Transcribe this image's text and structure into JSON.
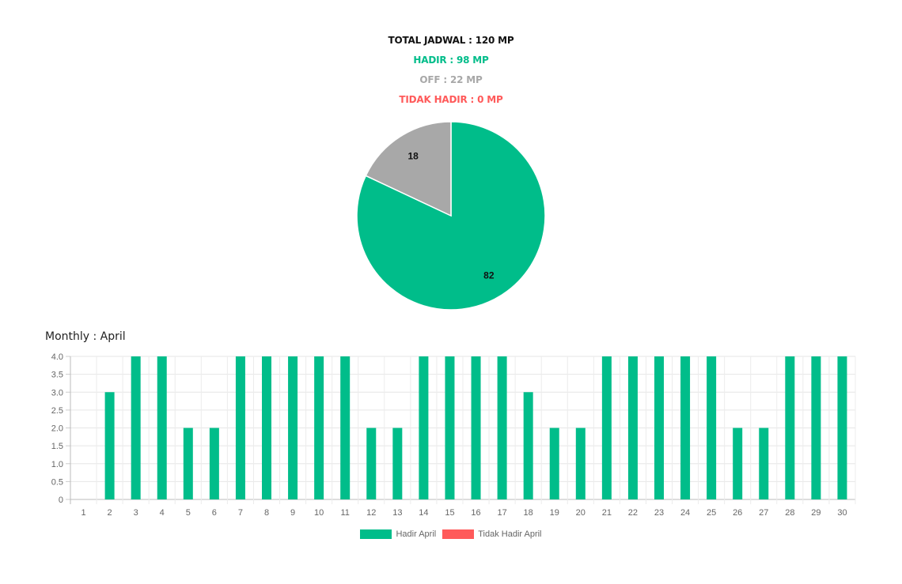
{
  "summary": {
    "total": "TOTAL JADWAL : 120 MP",
    "hadir": "HADIR : 98 MP",
    "off": "OFF : 22 MP",
    "tidak_hadir": "TIDAK HADIR : 0 MP"
  },
  "monthly_title": "Monthly : April",
  "colors": {
    "hadir": "#00bd8a",
    "off": "#a8a8a8",
    "tidak_hadir": "#ff5a5a",
    "total": "#111111"
  },
  "chart_data": [
    {
      "type": "pie",
      "values": [
        82,
        18
      ],
      "labels": [
        "82",
        "18"
      ],
      "colors": [
        "#00bd8a",
        "#a8a8a8"
      ]
    },
    {
      "type": "bar",
      "categories": [
        "1",
        "2",
        "3",
        "4",
        "5",
        "6",
        "7",
        "8",
        "9",
        "10",
        "11",
        "12",
        "13",
        "14",
        "15",
        "16",
        "17",
        "18",
        "19",
        "20",
        "21",
        "22",
        "23",
        "24",
        "25",
        "26",
        "27",
        "28",
        "29",
        "30"
      ],
      "series": [
        {
          "name": "Hadir April",
          "color": "#00bd8a",
          "values": [
            0,
            3,
            4,
            4,
            2,
            2,
            4,
            4,
            4,
            4,
            4,
            2,
            2,
            4,
            4,
            4,
            4,
            3,
            2,
            2,
            4,
            4,
            4,
            4,
            4,
            2,
            2,
            4,
            4,
            4
          ]
        },
        {
          "name": "Tidak Hadir April",
          "color": "#ff5a5a",
          "values": [
            0,
            0,
            0,
            0,
            0,
            0,
            0,
            0,
            0,
            0,
            0,
            0,
            0,
            0,
            0,
            0,
            0,
            0,
            0,
            0,
            0,
            0,
            0,
            0,
            0,
            0,
            0,
            0,
            0,
            0
          ]
        }
      ],
      "yticks": [
        "0",
        "0.5",
        "1.0",
        "1.5",
        "2.0",
        "2.5",
        "3.0",
        "3.5",
        "4.0"
      ],
      "ylim": [
        0,
        4
      ],
      "grid": true,
      "legend": "bottom"
    }
  ]
}
